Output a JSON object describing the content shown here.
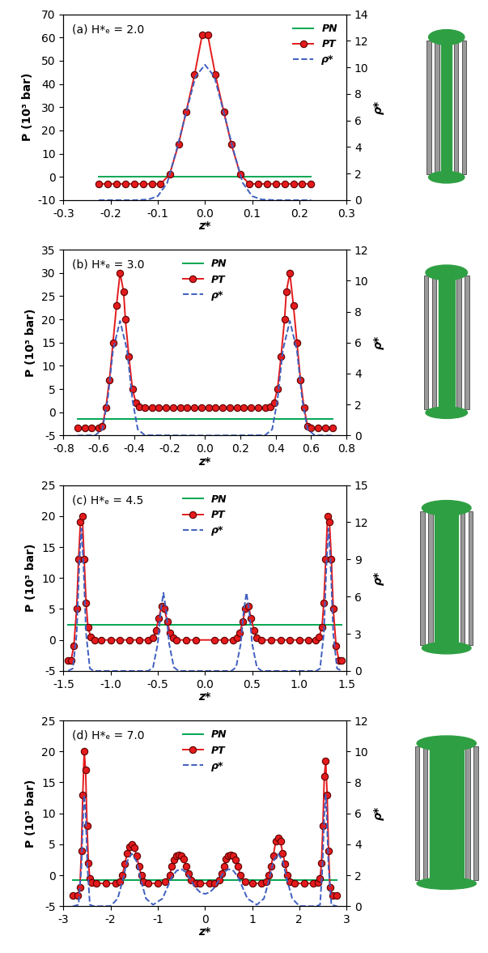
{
  "chart_data": [
    {
      "type": "line",
      "annotation": "(a) H*ₑ = 2.0",
      "x_label": "z*",
      "y_label": "P (10³ bar)",
      "y2_label": "ρ*",
      "xlim": [
        -0.3,
        0.3
      ],
      "xticks": [
        -0.3,
        -0.2,
        -0.1,
        0.0,
        0.1,
        0.2,
        0.3
      ],
      "ylim": [
        -10,
        70
      ],
      "yticks": [
        -10,
        0,
        10,
        20,
        30,
        40,
        50,
        60,
        70
      ],
      "y2lim": [
        0,
        14
      ],
      "y2ticks": [
        0,
        2,
        4,
        6,
        8,
        10,
        12,
        14
      ],
      "legend": "upper right",
      "series": [
        {
          "name": "PN",
          "color": "#00a651",
          "line_style": "solid",
          "marker": "none",
          "x": [
            -0.225,
            0.225
          ],
          "values": [
            0,
            0
          ]
        },
        {
          "name": "PT",
          "color": "#e41a1c",
          "line_style": "solid",
          "marker": "o",
          "x": [
            -0.225,
            -0.206,
            -0.188,
            -0.169,
            -0.15,
            -0.131,
            -0.112,
            -0.094,
            -0.075,
            -0.056,
            -0.04,
            -0.022,
            -0.006,
            0.006,
            0.022,
            0.04,
            0.056,
            0.075,
            0.094,
            0.112,
            0.131,
            0.15,
            0.169,
            0.188,
            0.206,
            0.225
          ],
          "values": [
            -3,
            -3,
            -3,
            -3,
            -3,
            -3,
            -3,
            -3,
            1,
            14,
            28,
            44,
            61,
            61,
            44,
            28,
            14,
            1,
            -3,
            -3,
            -3,
            -3,
            -3,
            -3,
            -3,
            -3
          ]
        },
        {
          "name": "ρ*",
          "color": "#3f5fbf",
          "line_style": "dashed",
          "marker": "none",
          "axis": "y2",
          "x": [
            -0.225,
            -0.15,
            -0.12,
            -0.1,
            -0.08,
            -0.06,
            -0.04,
            -0.02,
            0,
            0.02,
            0.04,
            0.06,
            0.08,
            0.1,
            0.12,
            0.15,
            0.225
          ],
          "values": [
            0,
            0,
            0.05,
            0.3,
            1.3,
            3.8,
            6.6,
            9.3,
            10.2,
            9.3,
            6.6,
            3.8,
            1.3,
            0.3,
            0.05,
            0,
            0
          ]
        }
      ]
    },
    {
      "type": "line",
      "annotation": "(b) H*ₑ = 3.0",
      "x_label": "z*",
      "y_label": "P (10³ bar)",
      "y2_label": "ρ*",
      "xlim": [
        -0.8,
        0.8
      ],
      "xticks": [
        -0.8,
        -0.6,
        -0.4,
        -0.2,
        0.0,
        0.2,
        0.4,
        0.6,
        0.8
      ],
      "ylim": [
        -5,
        35
      ],
      "yticks": [
        -5,
        0,
        5,
        10,
        15,
        20,
        25,
        30,
        35
      ],
      "y2lim": [
        0,
        12
      ],
      "y2ticks": [
        0,
        2,
        4,
        6,
        8,
        10,
        12
      ],
      "legend": "upper center",
      "series": [
        {
          "name": "PN",
          "color": "#00a651",
          "line_style": "solid",
          "marker": "none",
          "x": [
            -0.72,
            0.72
          ],
          "values": [
            -1.5,
            -1.5
          ]
        },
        {
          "name": "PT",
          "color": "#e41a1c",
          "line_style": "solid",
          "marker": "o",
          "x": [
            -0.72,
            -0.68,
            -0.64,
            -0.6,
            -0.58,
            -0.56,
            -0.54,
            -0.52,
            -0.5,
            -0.48,
            -0.46,
            -0.45,
            -0.43,
            -0.41,
            -0.39,
            -0.37,
            -0.34,
            -0.3,
            -0.26,
            -0.22,
            -0.18,
            -0.14,
            -0.1,
            -0.06,
            -0.02,
            0.02,
            0.06,
            0.1,
            0.14,
            0.18,
            0.22,
            0.26,
            0.3,
            0.34,
            0.37,
            0.39,
            0.41,
            0.43,
            0.45,
            0.46,
            0.48,
            0.5,
            0.52,
            0.54,
            0.56,
            0.58,
            0.6,
            0.64,
            0.68,
            0.72
          ],
          "values": [
            -3.3,
            -3.3,
            -3.3,
            -3.3,
            -3,
            1,
            7,
            15,
            23,
            30,
            26,
            20,
            12,
            5,
            2,
            1.2,
            1,
            1,
            1,
            1,
            1,
            1,
            1,
            1,
            1,
            1,
            1,
            1,
            1,
            1,
            1,
            1,
            1,
            1,
            1.2,
            2,
            5,
            12,
            20,
            26,
            30,
            23,
            15,
            7,
            1,
            -3,
            -3.3,
            -3.3,
            -3.3,
            -3.3
          ]
        },
        {
          "name": "ρ*",
          "color": "#3f5fbf",
          "line_style": "dashed",
          "marker": "none",
          "axis": "y2",
          "x": [
            -0.72,
            -0.62,
            -0.58,
            -0.55,
            -0.52,
            -0.48,
            -0.44,
            -0.41,
            -0.38,
            -0.34,
            0,
            0.34,
            0.38,
            0.41,
            0.44,
            0.48,
            0.52,
            0.55,
            0.58,
            0.62,
            0.72
          ],
          "values": [
            0,
            0.02,
            0.4,
            2.3,
            5.5,
            7.4,
            5.5,
            2.3,
            0.4,
            0.02,
            0,
            0.02,
            0.4,
            2.3,
            5.5,
            7.4,
            5.5,
            2.3,
            0.4,
            0.02,
            0
          ]
        }
      ]
    },
    {
      "type": "line",
      "annotation": "(c) H*ₑ = 4.5",
      "x_label": "z*",
      "y_label": "P (10³ bar)",
      "y2_label": "ρ*",
      "xlim": [
        -1.5,
        1.5
      ],
      "xticks": [
        -1.5,
        -1.0,
        -0.5,
        0.0,
        0.5,
        1.0,
        1.5
      ],
      "ylim": [
        -5,
        25
      ],
      "yticks": [
        -5,
        0,
        5,
        10,
        15,
        20,
        25
      ],
      "y2lim": [
        0,
        15
      ],
      "y2ticks": [
        0,
        3,
        6,
        9,
        12,
        15
      ],
      "legend": "upper center",
      "series": [
        {
          "name": "PN",
          "color": "#00a651",
          "line_style": "solid",
          "marker": "none",
          "x": [
            -1.45,
            1.45
          ],
          "values": [
            2.5,
            2.5
          ]
        },
        {
          "name": "PT",
          "color": "#e41a1c",
          "line_style": "solid",
          "marker": "o",
          "x": [
            -1.45,
            -1.42,
            -1.39,
            -1.36,
            -1.34,
            -1.32,
            -1.3,
            -1.28,
            -1.26,
            -1.24,
            -1.21,
            -1.17,
            -1.1,
            -1.0,
            -0.9,
            -0.8,
            -0.7,
            -0.6,
            -0.55,
            -0.52,
            -0.49,
            -0.46,
            -0.43,
            -0.4,
            -0.37,
            -0.34,
            -0.3,
            -0.2,
            -0.1,
            0.1,
            0.2,
            0.3,
            0.34,
            0.37,
            0.4,
            0.43,
            0.46,
            0.49,
            0.52,
            0.55,
            0.6,
            0.7,
            0.8,
            0.9,
            1.0,
            1.1,
            1.17,
            1.21,
            1.24,
            1.26,
            1.28,
            1.3,
            1.32,
            1.34,
            1.36,
            1.39,
            1.42,
            1.45
          ],
          "values": [
            -3.3,
            -3.3,
            -1,
            5,
            13,
            19,
            20,
            13,
            6,
            2,
            0.5,
            0,
            0,
            0,
            0,
            0,
            0,
            0,
            0.3,
            1.5,
            3.5,
            5.5,
            5,
            3,
            1.2,
            0.3,
            0,
            0,
            0,
            0,
            0,
            0,
            0.3,
            1.2,
            3,
            5,
            5.5,
            3.5,
            1.5,
            0.3,
            0,
            0,
            0,
            0,
            0,
            0,
            0,
            0.5,
            2,
            6,
            13,
            20,
            19,
            13,
            5,
            -1,
            -3.3,
            -3.3
          ]
        },
        {
          "name": "ρ*",
          "color": "#3f5fbf",
          "line_style": "dashed",
          "marker": "none",
          "axis": "y2",
          "x": [
            -1.45,
            -1.4,
            -1.36,
            -1.33,
            -1.31,
            -1.29,
            -1.26,
            -1.22,
            -1.18,
            -0.6,
            -0.55,
            -0.5,
            -0.47,
            -0.44,
            -0.41,
            -0.38,
            -0.33,
            -0.28,
            0,
            0.28,
            0.33,
            0.38,
            0.41,
            0.44,
            0.47,
            0.5,
            0.55,
            0.6,
            1.18,
            1.22,
            1.26,
            1.29,
            1.31,
            1.33,
            1.36,
            1.4,
            1.45
          ],
          "values": [
            0,
            0.2,
            3,
            9,
            11.5,
            9,
            3,
            0.2,
            0,
            0,
            0.3,
            2.2,
            4.8,
            6.3,
            4.8,
            2.2,
            0.3,
            0,
            0,
            0,
            0.3,
            2.2,
            4.8,
            6.3,
            4.8,
            2.2,
            0.3,
            0,
            0,
            0.2,
            3,
            9,
            11.5,
            9,
            3,
            0.2,
            0
          ]
        }
      ]
    },
    {
      "type": "line",
      "annotation": "(d) H*ₑ = 7.0",
      "x_label": "z*",
      "y_label": "P (10³ bar)",
      "y2_label": "ρ*",
      "xlim": [
        -3,
        3
      ],
      "xticks": [
        -3,
        -2,
        -1,
        0,
        1,
        2,
        3
      ],
      "ylim": [
        -5,
        25
      ],
      "yticks": [
        -5,
        0,
        5,
        10,
        15,
        20,
        25
      ],
      "y2lim": [
        0,
        12
      ],
      "y2ticks": [
        0,
        2,
        4,
        6,
        8,
        10,
        12
      ],
      "legend": "upper center",
      "series": [
        {
          "name": "PN",
          "color": "#00a651",
          "line_style": "solid",
          "marker": "none",
          "x": [
            -2.8,
            2.8
          ],
          "values": [
            -0.8,
            -0.8
          ]
        },
        {
          "name": "PT",
          "color": "#e41a1c",
          "line_style": "solid",
          "marker": "o",
          "x": [
            -2.8,
            -2.7,
            -2.65,
            -2.62,
            -2.59,
            -2.56,
            -2.53,
            -2.5,
            -2.47,
            -2.44,
            -2.4,
            -2.3,
            -2.1,
            -1.9,
            -1.8,
            -1.75,
            -1.7,
            -1.65,
            -1.6,
            -1.55,
            -1.5,
            -1.45,
            -1.4,
            -1.35,
            -1.3,
            -1.2,
            -1.0,
            -0.85,
            -0.75,
            -0.7,
            -0.65,
            -0.6,
            -0.55,
            -0.5,
            -0.45,
            -0.4,
            -0.35,
            -0.3,
            -0.2,
            -0.1,
            0.1,
            0.2,
            0.3,
            0.35,
            0.4,
            0.45,
            0.5,
            0.55,
            0.6,
            0.65,
            0.7,
            0.75,
            0.85,
            1.0,
            1.2,
            1.3,
            1.35,
            1.4,
            1.45,
            1.5,
            1.55,
            1.6,
            1.65,
            1.7,
            1.75,
            1.8,
            1.9,
            2.1,
            2.3,
            2.4,
            2.44,
            2.47,
            2.5,
            2.53,
            2.56,
            2.59,
            2.62,
            2.65,
            2.7,
            2.8
          ],
          "values": [
            -3.3,
            -3.3,
            -2,
            4,
            13,
            20,
            17,
            8,
            2,
            -0.5,
            -1.2,
            -1.3,
            -1.3,
            -1.3,
            -1.0,
            0,
            1.8,
            3.5,
            4.6,
            5,
            4.5,
            3.2,
            1.5,
            0,
            -1,
            -1.3,
            -1.3,
            -1.0,
            0,
            1.5,
            2.5,
            3.1,
            3.3,
            3.2,
            2.6,
            1.5,
            0.3,
            -0.8,
            -1.3,
            -1.3,
            -1.3,
            -1.3,
            -0.8,
            0.3,
            1.5,
            2.6,
            3.2,
            3.3,
            3.1,
            2.5,
            1.5,
            0,
            -1.0,
            -1.3,
            -1.3,
            -1,
            0,
            1.5,
            3.2,
            5.5,
            6,
            5.5,
            3.5,
            1.8,
            0,
            -1.0,
            -1.3,
            -1.3,
            -1.3,
            -1.2,
            -0.5,
            2,
            8,
            16,
            18.5,
            13,
            4,
            -2,
            -3.3,
            -3.3
          ]
        },
        {
          "name": "ρ*",
          "color": "#3f5fbf",
          "line_style": "dashed",
          "marker": "none",
          "axis": "y2",
          "x": [
            -2.8,
            -2.68,
            -2.62,
            -2.58,
            -2.56,
            -2.53,
            -2.49,
            -2.44,
            -2.35,
            -2.0,
            -1.85,
            -1.75,
            -1.65,
            -1.55,
            -1.45,
            -1.35,
            -1.25,
            -1.1,
            -0.9,
            -0.8,
            -0.7,
            -0.6,
            -0.5,
            -0.4,
            -0.3,
            -0.2,
            -0.1,
            0,
            0.1,
            0.2,
            0.3,
            0.4,
            0.5,
            0.6,
            0.7,
            0.8,
            0.9,
            1.1,
            1.25,
            1.35,
            1.45,
            1.55,
            1.65,
            1.75,
            1.85,
            2.0,
            2.35,
            2.44,
            2.49,
            2.53,
            2.56,
            2.58,
            2.62,
            2.68,
            2.8
          ],
          "values": [
            0,
            0.1,
            2.5,
            6,
            7.2,
            6,
            2.5,
            0.1,
            0,
            0.02,
            0.5,
            1.6,
            2.9,
            3.4,
            2.9,
            1.6,
            0.5,
            0.1,
            0.5,
            1.2,
            1.9,
            2.3,
            2.4,
            2.2,
            1.7,
            1.2,
            0.9,
            0.8,
            0.9,
            1.2,
            1.7,
            2.2,
            2.4,
            2.3,
            1.9,
            1.2,
            0.5,
            0.1,
            0.5,
            1.6,
            2.9,
            3.4,
            2.9,
            1.6,
            0.5,
            0.02,
            0,
            0.1,
            2.5,
            6,
            7.2,
            6,
            2.5,
            0.1,
            0
          ]
        }
      ]
    }
  ]
}
